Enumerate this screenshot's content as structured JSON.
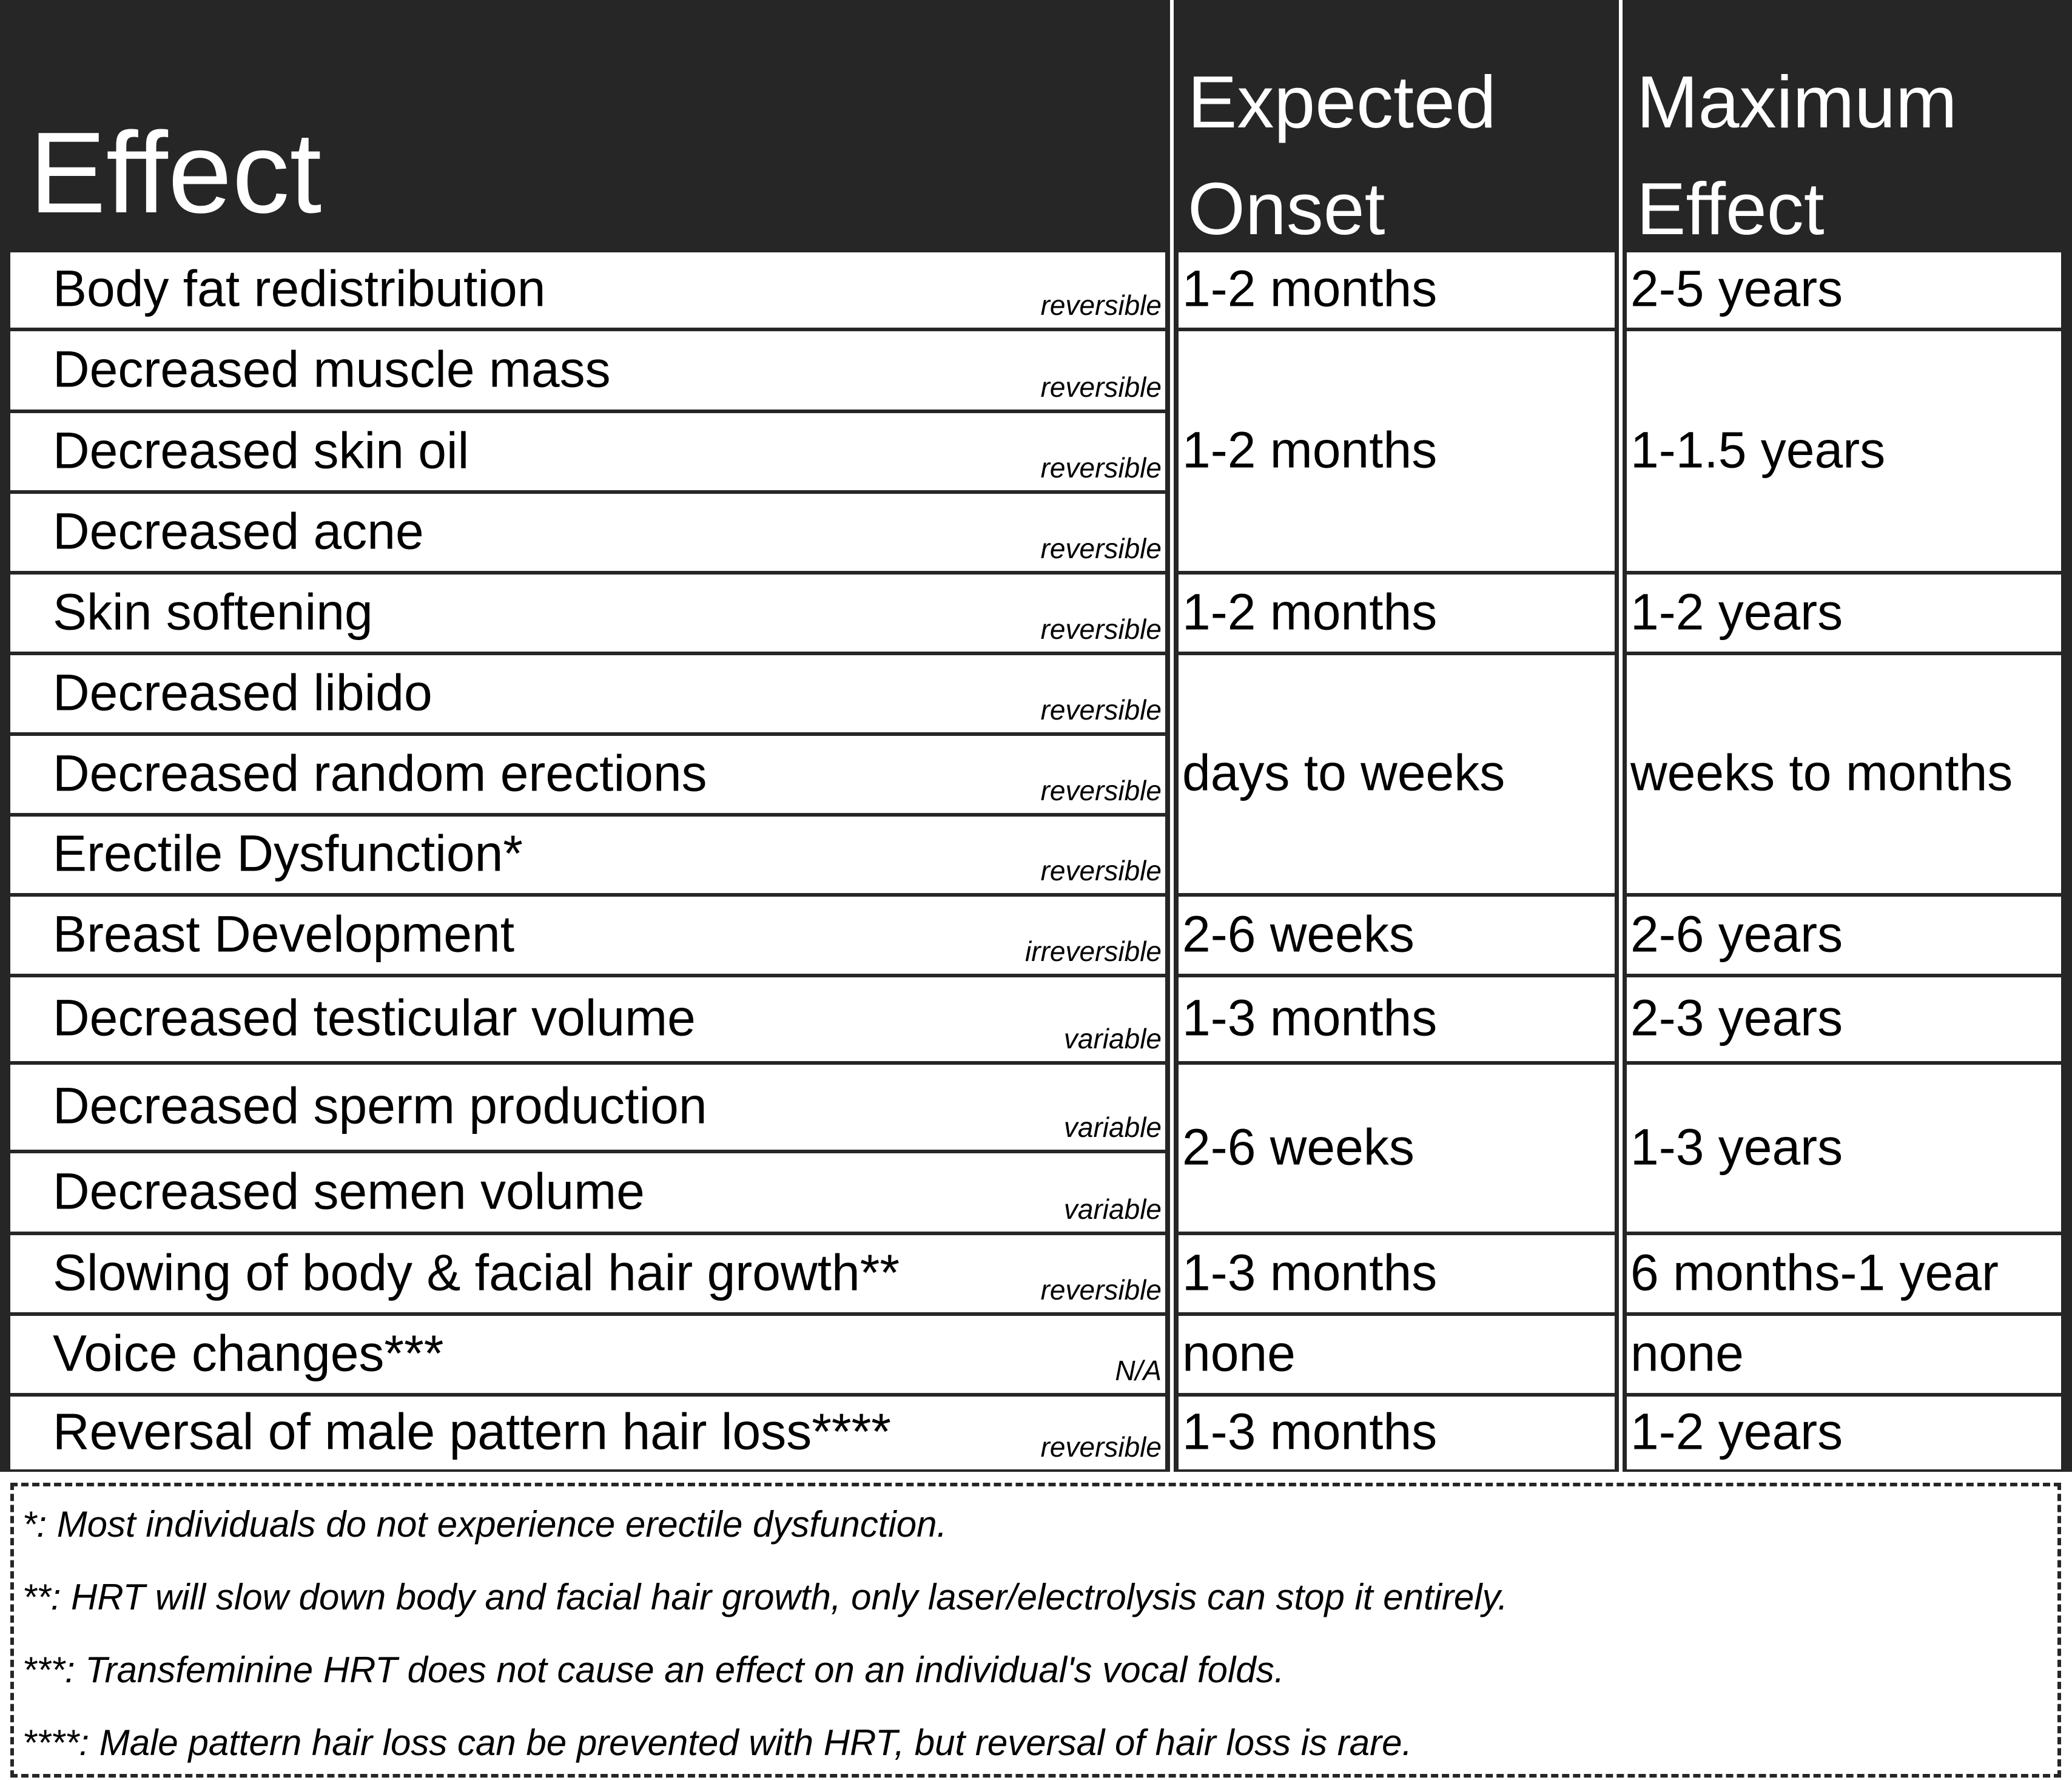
{
  "header": {
    "effect": "Effect",
    "onset": [
      "Expected",
      "Onset"
    ],
    "maximum": [
      "Maximum",
      "Effect"
    ]
  },
  "colors": {
    "header_bg": "#262626",
    "header_text": "#ffffff",
    "grid": "#262626"
  },
  "rows": [
    {
      "effect": "Body fat redistribution",
      "reversibility": "reversible"
    },
    {
      "effect": "Decreased muscle mass",
      "reversibility": "reversible"
    },
    {
      "effect": "Decreased skin oil",
      "reversibility": "reversible"
    },
    {
      "effect": "Decreased acne",
      "reversibility": "reversible"
    },
    {
      "effect": "Skin softening",
      "reversibility": "reversible"
    },
    {
      "effect": "Decreased libido",
      "reversibility": "reversible"
    },
    {
      "effect": "Decreased random erections",
      "reversibility": "reversible"
    },
    {
      "effect": "Erectile Dysfunction*",
      "reversibility": "reversible"
    },
    {
      "effect": "Breast Development",
      "reversibility": "irreversible"
    },
    {
      "effect": "Decreased testicular volume",
      "reversibility": "variable"
    },
    {
      "effect": "Decreased sperm production",
      "reversibility": "variable"
    },
    {
      "effect": "Decreased semen volume",
      "reversibility": "variable"
    },
    {
      "effect": "Slowing of body & facial hair growth**",
      "reversibility": "reversible"
    },
    {
      "effect": "Voice changes***",
      "reversibility": "N/A"
    },
    {
      "effect": "Reversal of male pattern hair loss****",
      "reversibility": "reversible"
    }
  ],
  "groups": [
    {
      "rows": [
        0
      ],
      "onset": "1-2 months",
      "maximum": "2-5 years"
    },
    {
      "rows": [
        1,
        3
      ],
      "onset": "1-2 months",
      "maximum": "1-1.5 years"
    },
    {
      "rows": [
        4
      ],
      "onset": "1-2 months",
      "maximum": "1-2 years"
    },
    {
      "rows": [
        5,
        7
      ],
      "onset": "days to weeks",
      "maximum": "weeks to months"
    },
    {
      "rows": [
        8
      ],
      "onset": "2-6 weeks",
      "maximum": "2-6 years"
    },
    {
      "rows": [
        9
      ],
      "onset": "1-3 months",
      "maximum": "2-3 years"
    },
    {
      "rows": [
        10,
        11
      ],
      "onset": "2-6 weeks",
      "maximum": "1-3 years"
    },
    {
      "rows": [
        12
      ],
      "onset": "1-3 months",
      "maximum": "6 months-1 year"
    },
    {
      "rows": [
        13
      ],
      "onset": "none",
      "maximum": "none"
    },
    {
      "rows": [
        14
      ],
      "onset": "1-3 months",
      "maximum": "1-2 years"
    }
  ],
  "footnotes": [
    "*: Most individuals do not experience erectile dysfunction.",
    "**: HRT will slow down body and facial hair growth, only laser/electrolysis can stop it entirely.",
    "***: Transfeminine HRT does not cause an effect on an individual's vocal folds.",
    "****: Male pattern hair loss can be prevented with HRT, but reversal of hair loss is rare."
  ]
}
